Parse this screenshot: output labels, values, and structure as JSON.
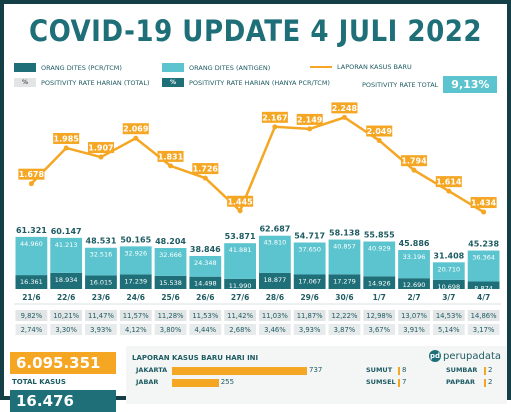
{
  "title": "COVID-19 UPDATE 4 JULI 2022",
  "legend": {
    "orang_dites_pcr": "ORANG DITES (PCR/TCM)",
    "orang_dites_antigen": "ORANG DITES (ANTIGEN)",
    "laporan_kasus": "LAPORAN KASUS BARU",
    "positivity_total": "POSITIVITY RATE HARIAN (TOTAL)",
    "positivity_pcr": "POSITIVITY RATE HARIAN (HANYA PCR/TCM)",
    "positivity_total_label": "POSITIVITY RATE TOTAL",
    "positivity_total_value": "9,13%",
    "pct_symbol": "%"
  },
  "colors": {
    "pcr": "#1e6f78",
    "antigen": "#5bc4cf",
    "cases": "#f5a623",
    "frame": "#153f46"
  },
  "chart_data": {
    "type": "bar",
    "categories": [
      "21/6",
      "22/6",
      "23/6",
      "24/6",
      "25/6",
      "26/6",
      "27/6",
      "28/6",
      "29/6",
      "30/6",
      "1/7",
      "2/7",
      "3/7",
      "4/7"
    ],
    "series": [
      {
        "name": "ORANG DITES (PCR/TCM)",
        "values": [
          16361,
          18934,
          16015,
          17239,
          15538,
          14498,
          11990,
          18877,
          17067,
          17279,
          14926,
          12690,
          10698,
          8874
        ],
        "labels": [
          "16.361",
          "18.934",
          "16.015",
          "17.239",
          "15.538",
          "14.498",
          "11.990",
          "18.877",
          "17.067",
          "17.279",
          "14.926",
          "12.690",
          "10.698",
          "8.874"
        ]
      },
      {
        "name": "ORANG DITES (ANTIGEN)",
        "values": [
          44960,
          41213,
          32516,
          32926,
          32666,
          24348,
          41881,
          43810,
          37650,
          40857,
          40929,
          33196,
          20710,
          36364
        ],
        "labels": [
          "44.960",
          "41.213",
          "32.516",
          "32.926",
          "32.666",
          "24.348",
          "41.881",
          "43.810",
          "37.650",
          "40.857",
          "40.929",
          "33.196",
          "20.710",
          "36.364"
        ]
      },
      {
        "name": "LAPORAN KASUS BARU",
        "type": "line",
        "values": [
          1678,
          1985,
          1907,
          2069,
          1831,
          1726,
          1445,
          2167,
          2149,
          2248,
          2049,
          1794,
          1614,
          1434
        ],
        "labels": [
          "1.678",
          "1.985",
          "1.907",
          "2.069",
          "1.831",
          "1.726",
          "1.445",
          "2.167",
          "2.149",
          "2.248",
          "2.049",
          "1.794",
          "1.614",
          "1.434"
        ]
      }
    ],
    "totals": [
      61321,
      60147,
      48531,
      50165,
      48204,
      38846,
      53871,
      62687,
      54717,
      58138,
      55855,
      45886,
      31408,
      45238
    ],
    "total_labels": [
      "61.321",
      "60.147",
      "48.531",
      "50.165",
      "48.204",
      "38.846",
      "53.871",
      "62.687",
      "54.717",
      "58.138",
      "55.855",
      "45.886",
      "31.408",
      "45.238"
    ],
    "positivity_total": [
      "9,82%",
      "10,21%",
      "11,47%",
      "11,57%",
      "11,28%",
      "11,53%",
      "11,42%",
      "11,03%",
      "11,87%",
      "12,22%",
      "12,98%",
      "13,07%",
      "14,53%",
      "14,86%"
    ],
    "positivity_pcr": [
      "2,74%",
      "3,30%",
      "3,93%",
      "4,12%",
      "3,80%",
      "4,44%",
      "2,68%",
      "3,46%",
      "3,93%",
      "3,87%",
      "3,67%",
      "3,91%",
      "5,14%",
      "3,17%"
    ]
  },
  "bottom": {
    "total_kasus_value": "6.095.351",
    "total_kasus_label": "TOTAL KASUS",
    "second_value": "16.476",
    "daily_title": "LAPORAN KASUS BARU HARI INI",
    "brand": "perupadata",
    "brand_mark": "pd",
    "provinces": [
      {
        "name": "JAKARTA",
        "value": 737,
        "label": "737"
      },
      {
        "name": "JABAR",
        "value": 255,
        "label": "255"
      },
      {
        "name": "SUMUT",
        "value": 8,
        "label": "8"
      },
      {
        "name": "SUMSEL",
        "value": 7,
        "label": "7"
      },
      {
        "name": "SUMBAR",
        "value": 2,
        "label": "2"
      },
      {
        "name": "PAPBAR",
        "value": 2,
        "label": "2"
      }
    ]
  }
}
